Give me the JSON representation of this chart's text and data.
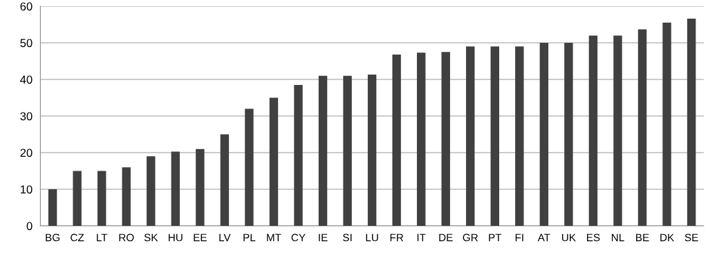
{
  "chart_data": {
    "type": "bar",
    "categories": [
      "BG",
      "CZ",
      "LT",
      "RO",
      "SK",
      "HU",
      "EE",
      "LV",
      "PL",
      "MT",
      "CY",
      "IE",
      "SI",
      "LU",
      "FR",
      "IT",
      "DE",
      "GR",
      "PT",
      "FI",
      "AT",
      "UK",
      "ES",
      "NL",
      "BE",
      "DK",
      "SE"
    ],
    "values": [
      10,
      15,
      15,
      16,
      19,
      20.3,
      21,
      25,
      32,
      35,
      38.5,
      41,
      41,
      41.3,
      46.8,
      47.3,
      47.5,
      49,
      49,
      49,
      50,
      50,
      52,
      52,
      53.7,
      55.5,
      56.6
    ],
    "color": "#404040",
    "ylim": [
      0,
      60
    ],
    "yticks": [
      0,
      10,
      20,
      30,
      40,
      50,
      60
    ],
    "grid": "y"
  }
}
